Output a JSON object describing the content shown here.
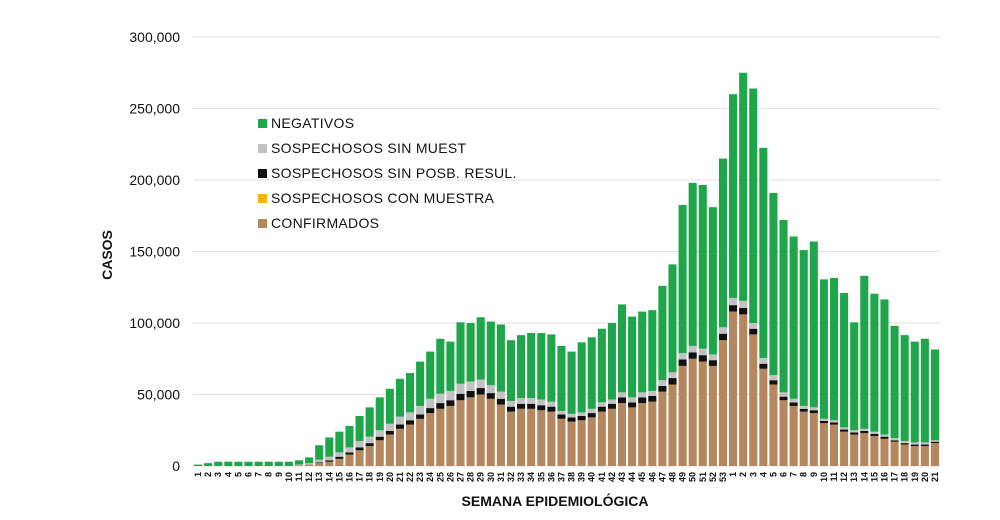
{
  "chart_data": {
    "type": "bar",
    "stacked": true,
    "xlabel": "SEMANA EPIDEMIOLÓGICA",
    "ylabel": "CASOS",
    "ylim": [
      0,
      300000
    ],
    "yticks": [
      "0",
      "50,000",
      "100,000",
      "150,000",
      "200,000",
      "250,000",
      "300,000"
    ],
    "grid": true,
    "legend_position": "top-left",
    "categories": [
      "1",
      "2",
      "3",
      "4",
      "5",
      "6",
      "7",
      "8",
      "9",
      "10",
      "11",
      "12",
      "13",
      "14",
      "15",
      "16",
      "17",
      "18",
      "19",
      "20",
      "21",
      "22",
      "23",
      "24",
      "25",
      "26",
      "27",
      "28",
      "29",
      "30",
      "31",
      "32",
      "33",
      "34",
      "35",
      "36",
      "37",
      "38",
      "39",
      "40",
      "41",
      "42",
      "43",
      "44",
      "45",
      "46",
      "47",
      "48",
      "49",
      "50",
      "51",
      "52",
      "53",
      "1",
      "2",
      "3",
      "4",
      "5",
      "6",
      "7",
      "8",
      "9",
      "10",
      "11",
      "12",
      "13",
      "14",
      "15",
      "16",
      "17",
      "18",
      "19",
      "20",
      "21"
    ],
    "legend_order": [
      "NEGATIVOS",
      "SOSPECHOSOS SIN MUEST",
      "SOSPECHOSOS SIN POSB. RESUL.",
      "SOSPECHOSOS CON MUESTRA",
      "CONFIRMADOS"
    ],
    "series": [
      {
        "name": "CONFIRMADOS",
        "color": "#b5875e",
        "values": [
          0,
          0,
          0,
          0,
          0,
          0,
          0,
          0,
          0,
          0,
          500,
          1000,
          2000,
          3000,
          5000,
          8000,
          11000,
          14000,
          18000,
          22000,
          26000,
          29000,
          33000,
          37000,
          40000,
          42000,
          46000,
          48000,
          50000,
          47000,
          43000,
          38000,
          40000,
          40000,
          39000,
          38000,
          33000,
          31000,
          32000,
          34000,
          38000,
          40000,
          44000,
          41000,
          44000,
          45000,
          52000,
          57000,
          70000,
          75000,
          73000,
          70000,
          88000,
          108000,
          106000,
          92000,
          68000,
          57000,
          46000,
          42000,
          38000,
          37000,
          30000,
          29000,
          24000,
          22000,
          23000,
          21000,
          19000,
          17000,
          15000,
          14000,
          14000,
          16000
        ]
      },
      {
        "name": "SOSPECHOSOS CON MUESTRA",
        "color": "#f2b705",
        "values": [
          0,
          0,
          0,
          0,
          0,
          0,
          0,
          0,
          0,
          0,
          0,
          0,
          0,
          0,
          0,
          0,
          0,
          0,
          0,
          0,
          0,
          0,
          0,
          0,
          0,
          0,
          0,
          0,
          0,
          0,
          0,
          0,
          0,
          0,
          0,
          0,
          0,
          0,
          0,
          0,
          0,
          0,
          0,
          0,
          0,
          0,
          0,
          0,
          0,
          0,
          0,
          0,
          0,
          0,
          0,
          0,
          0,
          0,
          0,
          0,
          0,
          0,
          0,
          0,
          0,
          0,
          0,
          0,
          0,
          0,
          0,
          0,
          0,
          0
        ]
      },
      {
        "name": "SOSPECHOSOS SIN POSB. RESUL.",
        "color": "#111111",
        "values": [
          0,
          0,
          0,
          0,
          0,
          0,
          0,
          0,
          0,
          0,
          0,
          0,
          500,
          1000,
          1500,
          1500,
          2000,
          2000,
          2500,
          2500,
          3000,
          3000,
          3000,
          3500,
          4000,
          4000,
          4500,
          4500,
          4500,
          4000,
          4000,
          3500,
          3500,
          3500,
          3500,
          3500,
          3000,
          3000,
          3000,
          3000,
          3500,
          3500,
          4000,
          3500,
          4000,
          4000,
          4000,
          4500,
          4500,
          4500,
          4500,
          4000,
          4500,
          4500,
          4500,
          4000,
          3500,
          3000,
          2500,
          2500,
          2000,
          2000,
          1500,
          1500,
          1500,
          1500,
          1500,
          1500,
          1500,
          1000,
          1000,
          1000,
          1000,
          1000
        ]
      },
      {
        "name": "SOSPECHOSOS SIN MUEST",
        "color": "#c2c2c2",
        "values": [
          0,
          0,
          0,
          0,
          0,
          0,
          0,
          0,
          0,
          0,
          500,
          1000,
          2000,
          2500,
          3000,
          3500,
          4500,
          4500,
          4500,
          5000,
          5500,
          5500,
          6000,
          6500,
          6500,
          6500,
          7000,
          6500,
          6000,
          5500,
          5000,
          4000,
          4000,
          4000,
          4000,
          3500,
          2500,
          2500,
          2500,
          3000,
          3000,
          3000,
          3500,
          3500,
          3500,
          3500,
          4000,
          4000,
          4500,
          4500,
          4500,
          4000,
          4500,
          5000,
          5000,
          4000,
          4000,
          3500,
          3000,
          2500,
          2000,
          2000,
          1500,
          1500,
          1500,
          1500,
          1500,
          1500,
          1500,
          1500,
          1500,
          1500,
          1500,
          1000
        ]
      },
      {
        "name": "NEGATIVOS",
        "color": "#1fa64a",
        "values": [
          1000,
          2000,
          3000,
          3000,
          3000,
          3000,
          3000,
          3000,
          3000,
          3000,
          3000,
          4000,
          10000,
          13500,
          14500,
          15000,
          17500,
          20500,
          23000,
          24500,
          26500,
          27500,
          31000,
          33000,
          38500,
          34500,
          43000,
          41000,
          43500,
          44500,
          47000,
          42500,
          44000,
          45500,
          46500,
          47000,
          45500,
          43500,
          49000,
          50000,
          51500,
          53500,
          61500,
          56500,
          56500,
          56500,
          66000,
          75500,
          103500,
          114000,
          114500,
          103000,
          118000,
          142500,
          159500,
          164000,
          147000,
          127500,
          120500,
          113500,
          109000,
          116000,
          97500,
          99500,
          94000,
          75500,
          107000,
          96500,
          94500,
          78500,
          74000,
          70500,
          72500,
          63500
        ]
      }
    ]
  }
}
